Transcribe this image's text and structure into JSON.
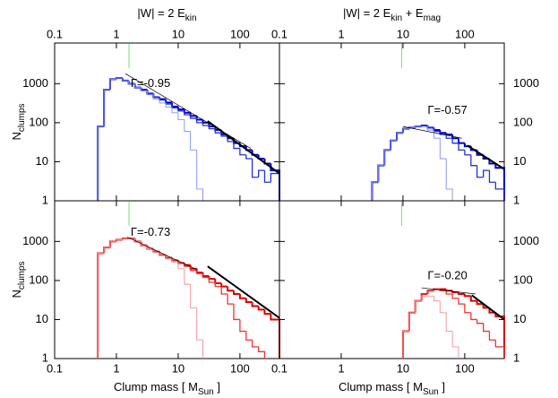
{
  "chart_data": [
    {
      "type": "histogram",
      "title": [
        "|W| = 2 E",
        "kin"
      ],
      "ylabel": [
        "N",
        "clumps"
      ],
      "xscale": "log",
      "yscale": "log",
      "xlim": [
        0.1,
        436
      ],
      "ylim": [
        1,
        11000
      ],
      "xticks": [
        0.1,
        1,
        10,
        100
      ],
      "yticks": [
        1,
        10,
        100,
        1000
      ],
      "xtick_labels": "top",
      "ytick_labels": "left",
      "bins": [
        0.5,
        0.63,
        0.79,
        1,
        1.26,
        1.58,
        2,
        2.51,
        3.16,
        3.98,
        5.01,
        6.31,
        7.94,
        10,
        12.6,
        15.8,
        20,
        25.1,
        31.6,
        39.8,
        50.1,
        63.1,
        79.4,
        100,
        126,
        158,
        200,
        251,
        316,
        436
      ],
      "series": [
        {
          "color": "#0000cc",
          "width": 2,
          "values": [
            80,
            700,
            1300,
            1400,
            1200,
            1000,
            800,
            700,
            560,
            450,
            400,
            330,
            260,
            220,
            180,
            150,
            120,
            100,
            80,
            65,
            50,
            40,
            30,
            25,
            20,
            15,
            12,
            9,
            6
          ]
        },
        {
          "color": "#2233cc",
          "width": 1.3,
          "values": [
            80,
            700,
            1300,
            1400,
            1200,
            1000,
            800,
            680,
            550,
            440,
            380,
            300,
            240,
            200,
            160,
            130,
            100,
            85,
            70,
            55,
            45,
            33,
            22,
            15,
            12,
            4,
            6,
            3,
            5
          ]
        },
        {
          "color": "#7f8ff0",
          "width": 0.9,
          "values": [
            80,
            700,
            1300,
            1400,
            1200,
            1000,
            800,
            650,
            520,
            400,
            320,
            250,
            180,
            120,
            60,
            20,
            2,
            null,
            null,
            null,
            null,
            null,
            null,
            null,
            null,
            null,
            null,
            null,
            null
          ]
        }
      ],
      "fit_label": "Γ=-0.95",
      "label_at": [
        1.7,
        1000
      ],
      "fit_lines": [
        {
          "x": [
            1.4,
            150
          ],
          "y": [
            1800,
            22
          ],
          "width": 0.7
        },
        {
          "x": [
            30,
            436
          ],
          "y": [
            110,
            5
          ],
          "width": 2
        }
      ],
      "marker_x": 1.6,
      "marker_color": "#77dd77"
    },
    {
      "type": "histogram",
      "title": [
        "|W| = 2 E",
        "kin",
        " + E",
        "mag"
      ],
      "xscale": "log",
      "yscale": "log",
      "xlim": [
        0.1,
        436
      ],
      "ylim": [
        1,
        11000
      ],
      "xticks": [
        0.1,
        1,
        10,
        100
      ],
      "yticks": [
        1,
        10,
        100,
        1000
      ],
      "xtick_labels": "top",
      "ytick_labels": "right",
      "bins": [
        3.16,
        3.98,
        5.01,
        6.31,
        7.94,
        10,
        12.6,
        15.8,
        20,
        25.1,
        31.6,
        39.8,
        50.1,
        63.1,
        79.4,
        100,
        126,
        158,
        200,
        251,
        316,
        436
      ],
      "series": [
        {
          "color": "#0000cc",
          "width": 2,
          "values": [
            3,
            8,
            20,
            35,
            55,
            70,
            75,
            80,
            85,
            75,
            65,
            55,
            50,
            40,
            30,
            25,
            20,
            15,
            12,
            9,
            7
          ]
        },
        {
          "color": "#2233cc",
          "width": 1.3,
          "values": [
            3,
            8,
            20,
            35,
            55,
            70,
            75,
            80,
            85,
            75,
            60,
            50,
            40,
            30,
            20,
            15,
            8,
            4,
            6,
            3,
            2
          ]
        },
        {
          "color": "#7f8ff0",
          "width": 0.9,
          "values": [
            3,
            8,
            20,
            35,
            55,
            70,
            75,
            80,
            80,
            65,
            40,
            12,
            2,
            null,
            null,
            null,
            null,
            null,
            null,
            null,
            null
          ]
        }
      ],
      "fit_label": "Γ=-0.57",
      "label_at": [
        25,
        200
      ],
      "fit_lines": [
        {
          "x": [
            10,
            90
          ],
          "y": [
            80,
            40
          ],
          "width": 0.7
        },
        {
          "x": [
            110,
            436
          ],
          "y": [
            26,
            6.5
          ],
          "width": 2
        }
      ],
      "marker_x": 9.5,
      "marker_color": "#77dd77"
    },
    {
      "type": "histogram",
      "ylabel": [
        "N",
        "clumps"
      ],
      "xlabel": [
        "Clump mass [ M",
        "Sun",
        " ]"
      ],
      "xscale": "log",
      "yscale": "log",
      "xlim": [
        0.1,
        436
      ],
      "ylim": [
        1,
        11000
      ],
      "xticks": [
        0.1,
        1,
        10,
        100
      ],
      "yticks": [
        1,
        10,
        100,
        1000
      ],
      "xtick_labels": "bottom",
      "ytick_labels": "left",
      "bins": [
        0.5,
        0.63,
        0.79,
        1,
        1.26,
        1.58,
        2,
        2.51,
        3.16,
        3.98,
        5.01,
        6.31,
        7.94,
        10,
        12.6,
        15.8,
        20,
        25.1,
        31.6,
        39.8,
        50.1,
        63.1,
        79.4,
        100,
        126,
        158,
        200,
        251,
        316,
        436
      ],
      "series": [
        {
          "color": "#dd0000",
          "width": 2,
          "values": [
            500,
            700,
            1000,
            1100,
            1200,
            1200,
            1000,
            800,
            650,
            550,
            450,
            380,
            330,
            280,
            250,
            200,
            160,
            130,
            110,
            85,
            70,
            55,
            45,
            35,
            28,
            22,
            18,
            14,
            10
          ]
        },
        {
          "color": "#ee3333",
          "width": 1.3,
          "values": [
            500,
            700,
            1000,
            1100,
            1200,
            1200,
            1000,
            800,
            650,
            550,
            450,
            380,
            330,
            280,
            230,
            180,
            150,
            120,
            90,
            70,
            45,
            25,
            10,
            5,
            3,
            2,
            1.5,
            null,
            null
          ]
        },
        {
          "color": "#f29090",
          "width": 0.9,
          "values": [
            500,
            700,
            1000,
            1100,
            1200,
            1200,
            1000,
            800,
            650,
            520,
            430,
            360,
            300,
            200,
            80,
            20,
            3,
            null,
            null,
            null,
            null,
            null,
            null,
            null,
            null,
            null,
            null,
            null,
            null
          ]
        }
      ],
      "fit_label": "Γ=-0.73",
      "label_at": [
        1.7,
        1700
      ],
      "fit_lines": [
        {
          "x": [
            1.5,
            20
          ],
          "y": [
            1300,
            190
          ],
          "width": 0.7
        },
        {
          "x": [
            30,
            436
          ],
          "y": [
            230,
            11
          ],
          "width": 2
        }
      ],
      "marker_x": 1.6,
      "marker_color": "#77dd77"
    },
    {
      "type": "histogram",
      "xlabel": [
        "Clump mass [ M",
        "Sun",
        " ]"
      ],
      "xscale": "log",
      "yscale": "log",
      "xlim": [
        0.1,
        436
      ],
      "ylim": [
        1,
        11000
      ],
      "xticks": [
        0.1,
        1,
        10,
        100
      ],
      "yticks": [
        1,
        10,
        100,
        1000
      ],
      "xtick_labels": "bottom",
      "ytick_labels": "right",
      "bins": [
        10,
        12.6,
        15.8,
        20,
        25.1,
        31.6,
        39.8,
        50.1,
        63.1,
        79.4,
        100,
        126,
        158,
        200,
        251,
        316,
        436
      ],
      "series": [
        {
          "color": "#dd0000",
          "width": 2,
          "values": [
            5,
            15,
            30,
            45,
            55,
            60,
            60,
            55,
            50,
            45,
            40,
            30,
            25,
            20,
            15,
            12
          ]
        },
        {
          "color": "#ee3333",
          "width": 1.3,
          "values": [
            5,
            15,
            30,
            45,
            55,
            60,
            55,
            45,
            35,
            25,
            15,
            10,
            8,
            5,
            3,
            2
          ]
        },
        {
          "color": "#f29090",
          "width": 0.9,
          "values": [
            5,
            15,
            30,
            40,
            40,
            30,
            15,
            5,
            2,
            null,
            null,
            null,
            null,
            null,
            null,
            null
          ]
        }
      ],
      "fit_label": "Γ=-0.20",
      "label_at": [
        25,
        130
      ],
      "fit_lines": [
        {
          "x": [
            20,
            150
          ],
          "y": [
            65,
            45
          ],
          "width": 0.7
        },
        {
          "x": [
            130,
            436
          ],
          "y": [
            42,
            10
          ],
          "width": 2
        }
      ],
      "marker_x": 9.5,
      "marker_color": "#77dd77"
    }
  ]
}
